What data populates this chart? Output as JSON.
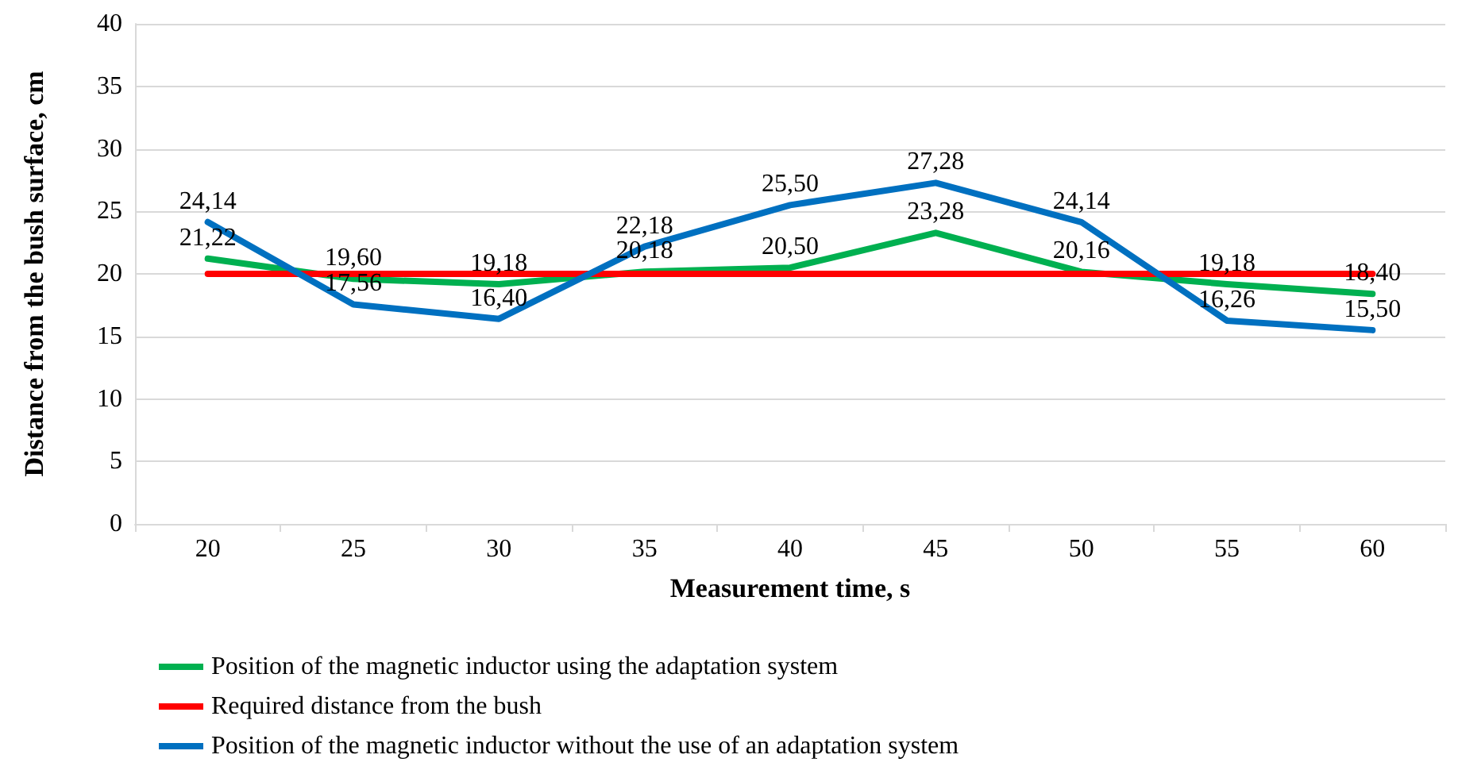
{
  "chart_data": {
    "type": "line",
    "xlabel": "Measurement time, s",
    "ylabel": "Distance from the bush surface, cm",
    "categories": [
      "20",
      "25",
      "30",
      "35",
      "40",
      "45",
      "50",
      "55",
      "60"
    ],
    "series": [
      {
        "name": "Position of the magnetic inductor using the adaptation system",
        "color": "#00b050",
        "values": [
          21.22,
          19.6,
          19.18,
          20.18,
          20.5,
          23.28,
          20.16,
          19.18,
          18.4
        ],
        "value_labels": [
          "21,22",
          "19,60",
          "19,18",
          "20,18",
          "20,50",
          "23,28",
          "20,16",
          "19,18",
          "18,40"
        ]
      },
      {
        "name": "Required distance from the bush",
        "color": "#ff0000",
        "values": [
          20,
          20,
          20,
          20,
          20,
          20,
          20,
          20,
          20
        ]
      },
      {
        "name": "Position of the magnetic inductor without the use of an adaptation system",
        "color": "#0070c0",
        "values": [
          24.14,
          17.56,
          16.4,
          22.18,
          25.5,
          27.28,
          24.14,
          16.26,
          15.5
        ],
        "value_labels": [
          "24,14",
          "17,56",
          "16,40",
          "22,18",
          "25,50",
          "27,28",
          "24,14",
          "16,26",
          "15,50"
        ]
      }
    ],
    "ylim": [
      0,
      40
    ],
    "yticks": [
      0,
      5,
      10,
      15,
      20,
      25,
      30,
      35,
      40
    ],
    "grid": "y",
    "legend": "bottom",
    "marker": "none",
    "line_style": "solid"
  }
}
